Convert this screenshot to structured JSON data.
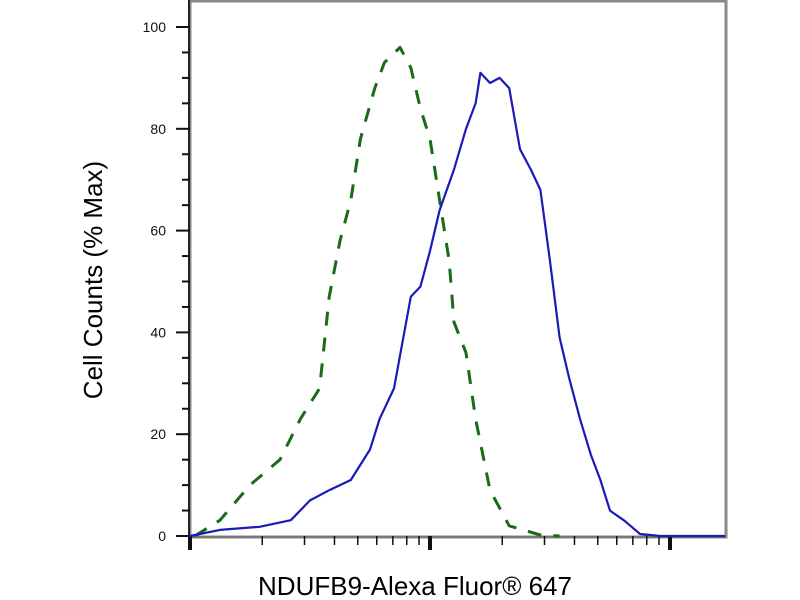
{
  "chart_data": {
    "type": "line",
    "title": "",
    "xlabel": "NDUFB9-Alexa Fluor® 647",
    "ylabel": "Cell Counts (% Max)",
    "x_scale": "log",
    "x_units": "decades",
    "xlim": [
      0,
      2.23
    ],
    "ylim": [
      0,
      100
    ],
    "yticks": [
      0,
      20,
      40,
      60,
      80,
      100
    ],
    "ytick_labels": [
      "0",
      "20",
      "40",
      "60",
      "80",
      "100"
    ],
    "x_major_ticks": [
      0,
      1,
      2
    ],
    "x_tick_labels_shown": false,
    "grid": false,
    "legend": "none",
    "series": [
      {
        "style": "dashed",
        "color": "#1a6a1a",
        "x": [
          0.02,
          0.125,
          0.25,
          0.375,
          0.46,
          0.54,
          0.58,
          0.625,
          0.67,
          0.71,
          0.77,
          0.81,
          0.875,
          0.92,
          0.96,
          1.0,
          1.04,
          1.08,
          1.1,
          1.15,
          1.19,
          1.25,
          1.33,
          1.46,
          1.54
        ],
        "y": [
          0,
          3.1,
          10,
          15,
          23,
          29,
          47,
          58,
          66,
          78,
          88,
          93,
          96,
          92,
          84,
          78,
          66,
          54,
          42,
          36,
          23,
          9,
          2,
          0.2,
          0
        ]
      },
      {
        "style": "solid",
        "color": "#1a1ab8",
        "x": [
          0,
          0.125,
          0.29,
          0.42,
          0.5,
          0.58,
          0.67,
          0.75,
          0.79,
          0.85,
          0.92,
          0.96,
          1.0,
          1.04,
          1.1,
          1.15,
          1.19,
          1.21,
          1.25,
          1.29,
          1.33,
          1.375,
          1.42,
          1.46,
          1.5,
          1.54,
          1.58,
          1.625,
          1.67,
          1.71,
          1.75,
          1.81,
          1.875,
          1.96,
          2.23
        ],
        "y": [
          0,
          1.2,
          1.8,
          3.1,
          7,
          9,
          11,
          17,
          23,
          29,
          47,
          49,
          56,
          64,
          72,
          80,
          85,
          91,
          89,
          90,
          88,
          76,
          72,
          68,
          54,
          39,
          31,
          23,
          16,
          11,
          5,
          3,
          0.4,
          0,
          0
        ]
      }
    ]
  }
}
